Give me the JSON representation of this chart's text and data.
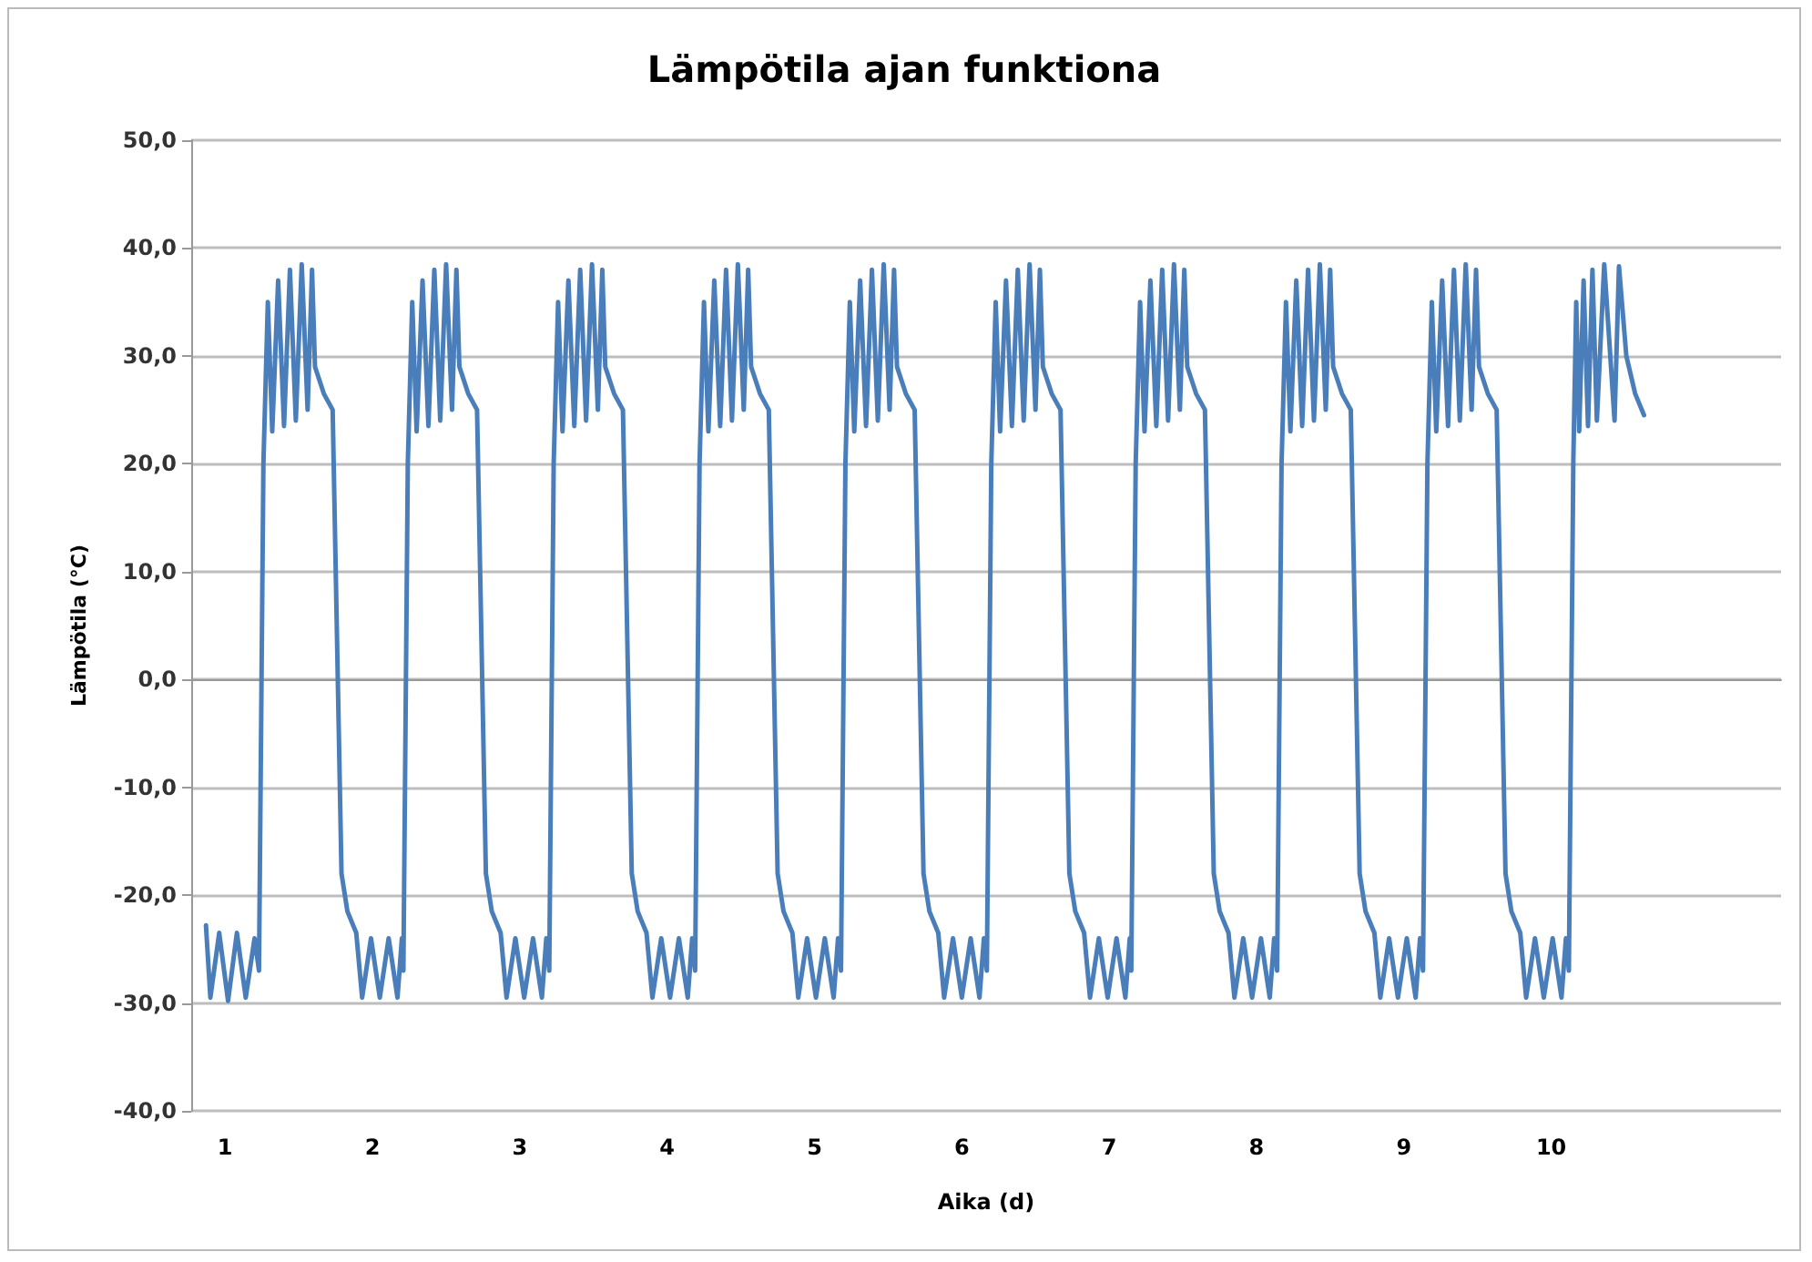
{
  "chart_data": {
    "type": "line",
    "title": "Lämpötila ajan funktiona",
    "xlabel": "Aika (d)",
    "ylabel": "Lämpötila (°C)",
    "xlim": [
      0.77,
      11.56
    ],
    "xticks": [
      1,
      2,
      3,
      4,
      5,
      6,
      7,
      8,
      9,
      10
    ],
    "ylim": [
      -40,
      50
    ],
    "yticks": [
      {
        "value": -40,
        "label": "-40,0"
      },
      {
        "value": -30,
        "label": "-30,0"
      },
      {
        "value": -20,
        "label": "-20,0"
      },
      {
        "value": -10,
        "label": "-10,0"
      },
      {
        "value": 0,
        "label": "0,0"
      },
      {
        "value": 10,
        "label": "10,0"
      },
      {
        "value": 20,
        "label": "20,0"
      },
      {
        "value": 30,
        "label": "30,0"
      },
      {
        "value": 40,
        "label": "40,0"
      },
      {
        "value": 50,
        "label": "50,0"
      }
    ],
    "grid": "y",
    "marker": "none",
    "line_style": "solid",
    "series": [
      {
        "color": "#4a7ebb",
        "x": [
          0.87,
          0.9,
          0.96,
          1.02,
          1.08,
          1.14,
          1.2,
          1.23,
          1.26,
          1.29,
          1.32,
          1.36,
          1.4,
          1.44,
          1.48,
          1.52,
          1.56,
          1.59,
          1.61,
          1.67,
          1.73,
          1.79,
          1.83,
          1.89,
          1.93,
          1.99,
          2.05,
          2.11,
          2.17,
          2.2,
          2.21,
          2.24,
          2.27,
          2.3,
          2.34,
          2.38,
          2.42,
          2.46,
          2.5,
          2.54,
          2.57,
          2.59,
          2.65,
          2.71,
          2.77,
          2.81,
          2.87,
          2.91,
          2.97,
          3.03,
          3.09,
          3.15,
          3.18,
          3.2,
          3.23,
          3.26,
          3.29,
          3.33,
          3.37,
          3.41,
          3.45,
          3.49,
          3.53,
          3.56,
          3.58,
          3.64,
          3.7,
          3.76,
          3.8,
          3.86,
          3.9,
          3.96,
          4.02,
          4.08,
          4.14,
          4.17,
          4.19,
          4.22,
          4.25,
          4.28,
          4.32,
          4.36,
          4.4,
          4.44,
          4.48,
          4.52,
          4.55,
          4.57,
          4.63,
          4.69,
          4.75,
          4.79,
          4.85,
          4.89,
          4.95,
          5.01,
          5.07,
          5.13,
          5.16,
          5.18,
          5.21,
          5.24,
          5.27,
          5.31,
          5.35,
          5.39,
          5.43,
          5.47,
          5.51,
          5.54,
          5.56,
          5.62,
          5.68,
          5.74,
          5.78,
          5.84,
          5.88,
          5.94,
          6.0,
          6.06,
          6.12,
          6.15,
          6.17,
          6.2,
          6.23,
          6.26,
          6.3,
          6.34,
          6.38,
          6.42,
          6.46,
          6.5,
          6.53,
          6.55,
          6.61,
          6.67,
          6.73,
          6.77,
          6.83,
          6.87,
          6.93,
          6.99,
          7.05,
          7.11,
          7.14,
          7.15,
          7.18,
          7.21,
          7.24,
          7.28,
          7.32,
          7.36,
          7.4,
          7.44,
          7.48,
          7.51,
          7.53,
          7.59,
          7.65,
          7.71,
          7.75,
          7.81,
          7.85,
          7.91,
          7.97,
          8.03,
          8.09,
          8.12,
          8.14,
          8.17,
          8.2,
          8.23,
          8.27,
          8.31,
          8.35,
          8.39,
          8.43,
          8.47,
          8.5,
          8.52,
          8.58,
          8.64,
          8.7,
          8.74,
          8.8,
          8.84,
          8.9,
          8.96,
          9.02,
          9.08,
          9.11,
          9.13,
          9.16,
          9.19,
          9.22,
          9.26,
          9.3,
          9.34,
          9.38,
          9.42,
          9.46,
          9.49,
          9.51,
          9.57,
          9.63,
          9.69,
          9.73,
          9.79,
          9.83,
          9.89,
          9.95,
          10.01,
          10.07,
          10.1,
          10.12,
          10.15,
          10.17,
          10.19,
          10.22,
          10.25,
          10.28,
          10.31,
          10.36,
          10.43,
          10.46,
          10.51,
          10.57,
          10.63
        ],
        "values": [
          -22.8,
          -29.5,
          -23.5,
          -29.8,
          -23.5,
          -29.5,
          -24,
          -27,
          20,
          35,
          23,
          37,
          23.5,
          38,
          24,
          38.5,
          25,
          38,
          29,
          26.5,
          25,
          -18,
          -21.5,
          -23.5,
          -29.5,
          -24,
          -29.5,
          -24,
          -29.5,
          -24,
          -27,
          20,
          35,
          23,
          37,
          23.5,
          38,
          24,
          38.5,
          25,
          38,
          29,
          26.5,
          25,
          -18,
          -21.5,
          -23.5,
          -29.5,
          -24,
          -29.5,
          -24,
          -29.5,
          -24,
          -27,
          20,
          35,
          23,
          37,
          23.5,
          38,
          24,
          38.5,
          25,
          38,
          29,
          26.5,
          25,
          -18,
          -21.5,
          -23.5,
          -29.5,
          -24,
          -29.5,
          -24,
          -29.5,
          -24,
          -27,
          20,
          35,
          23,
          37,
          23.5,
          38,
          24,
          38.5,
          25,
          38,
          29,
          26.5,
          25,
          -18,
          -21.5,
          -23.5,
          -29.5,
          -24,
          -29.5,
          -24,
          -29.5,
          -24,
          -27,
          20,
          35,
          23,
          37,
          23.5,
          38,
          24,
          38.5,
          25,
          38,
          29,
          26.5,
          25,
          -18,
          -21.5,
          -23.5,
          -29.5,
          -24,
          -29.5,
          -24,
          -29.5,
          -24,
          -27,
          20,
          35,
          23,
          37,
          23.5,
          38,
          24,
          38.5,
          25,
          38,
          29,
          26.5,
          25,
          -18,
          -21.5,
          -23.5,
          -29.5,
          -24,
          -29.5,
          -24,
          -29.5,
          -24,
          -27,
          20,
          35,
          23,
          37,
          23.5,
          38,
          24,
          38.5,
          25,
          38,
          29,
          26.5,
          25,
          -18,
          -21.5,
          -23.5,
          -29.5,
          -24,
          -29.5,
          -24,
          -29.5,
          -24,
          -27,
          20,
          35,
          23,
          37,
          23.5,
          38,
          24,
          38.5,
          25,
          38,
          29,
          26.5,
          25,
          -18,
          -21.5,
          -23.5,
          -29.5,
          -24,
          -29.5,
          -24,
          -29.5,
          -24,
          -27,
          20,
          35,
          23,
          37,
          23.5,
          38,
          24,
          38.5,
          25,
          38,
          29,
          26.5,
          25,
          -18,
          -21.5,
          -23.5,
          -29.5,
          -24,
          -29.5,
          -24,
          -29.5,
          -24,
          -27,
          20,
          35,
          23,
          37,
          23.5,
          38,
          24,
          38.5,
          24,
          38.3,
          30,
          26.5,
          24.5
        ]
      }
    ]
  }
}
